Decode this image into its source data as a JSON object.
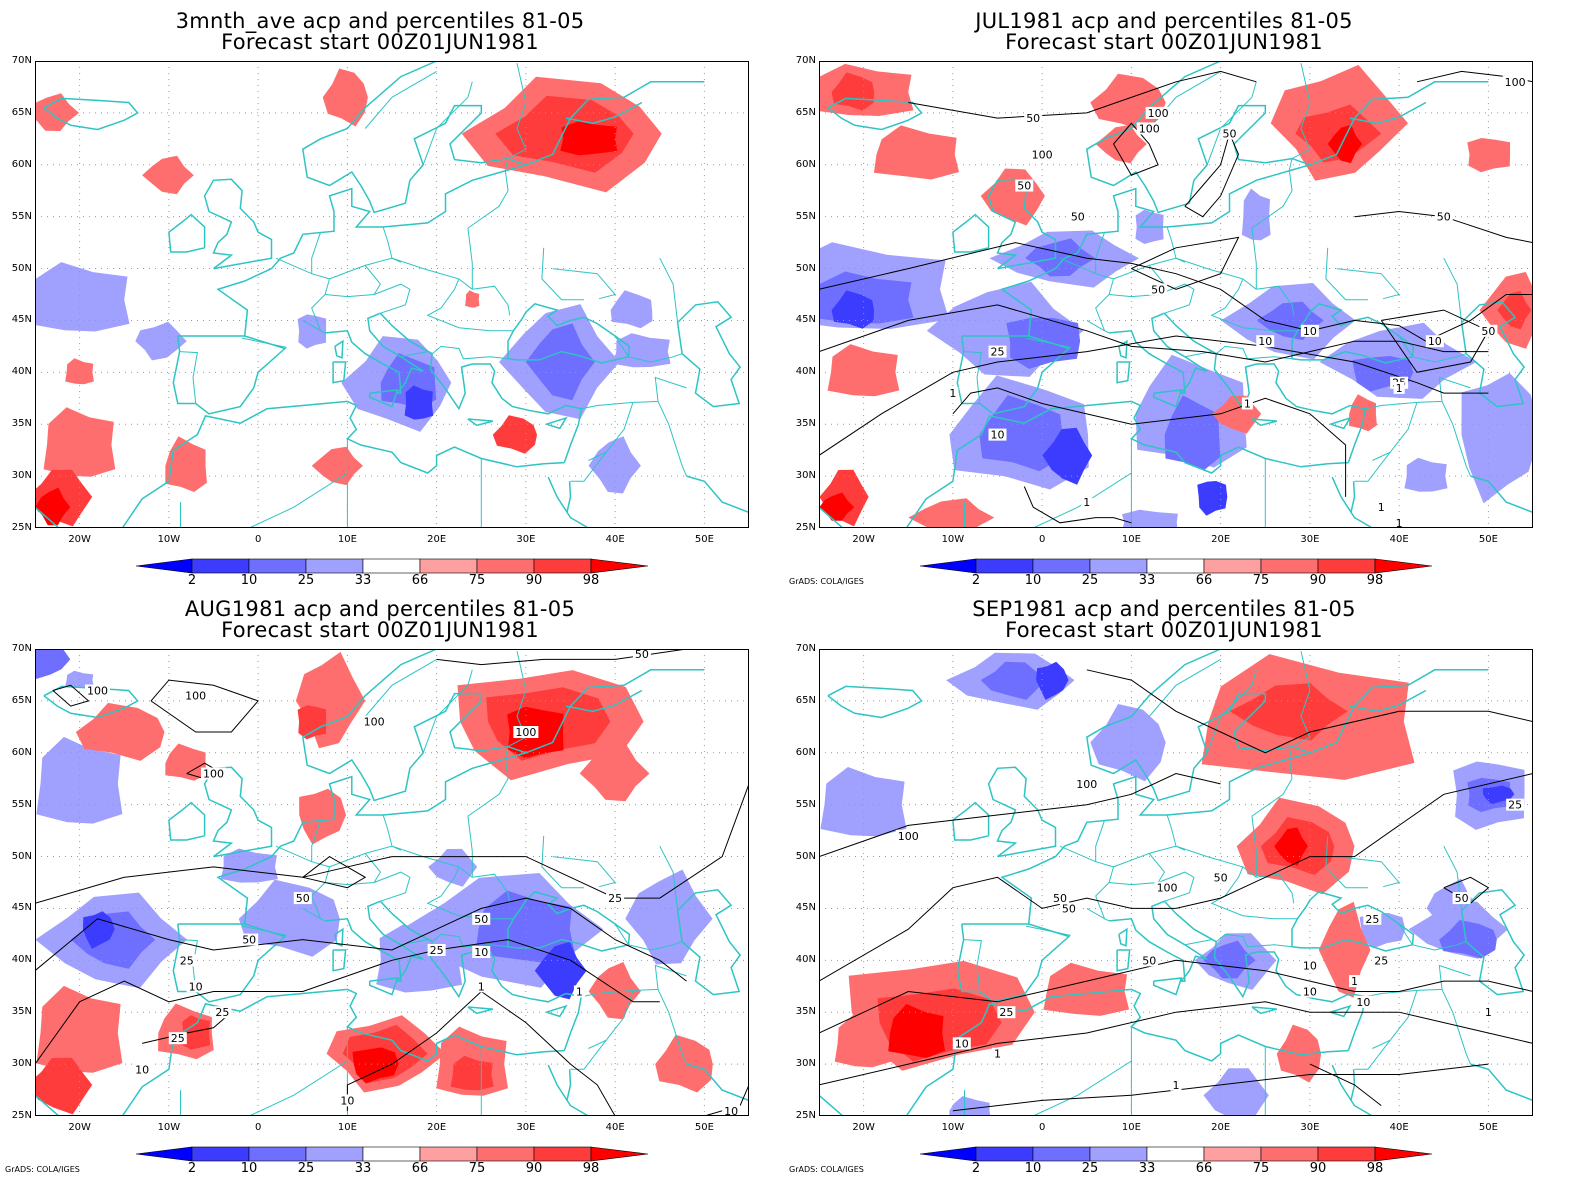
{
  "panels": [
    {
      "title_line1": "3mnth_ave acp and percentiles 81-05",
      "title_line2": "Forecast start 00Z01JUN1981",
      "credit": "",
      "variant": 0,
      "contour_labels": []
    },
    {
      "title_line1": "JUL1981 acp and percentiles 81-05",
      "title_line2": "Forecast start 00Z01JUN1981",
      "credit": "GrADS: COLA/IGES",
      "variant": 1,
      "contour_labels": [
        "50",
        "100",
        "100",
        "50",
        "100",
        "50",
        "50",
        "50",
        "100",
        "50",
        "10",
        "10",
        "25",
        "10",
        "50",
        "1",
        "25",
        "1",
        "1",
        "10",
        "1",
        "1",
        "1"
      ]
    },
    {
      "title_line1": "AUG1981 acp and percentiles 81-05",
      "title_line2": "Forecast start 00Z01JUN1981",
      "credit": "GrADS: COLA/IGES",
      "variant": 2,
      "contour_labels": [
        "50",
        "100",
        "100",
        "100",
        "100",
        "100",
        "25",
        "50",
        "50",
        "50",
        "25",
        "10",
        "25",
        "10",
        "1",
        "1",
        "25",
        "25",
        "10",
        "10",
        "10"
      ]
    },
    {
      "title_line1": "SEP1981 acp and percentiles 81-05",
      "title_line2": "Forecast start 00Z01JUN1981",
      "credit": "GrADS: COLA/IGES",
      "variant": 3,
      "contour_labels": [
        "100",
        "50",
        "100",
        "50",
        "100",
        "50",
        "25",
        "25",
        "50",
        "50",
        "25",
        "10",
        "10",
        "1",
        "25",
        "10",
        "10",
        "1",
        "1",
        "1"
      ]
    }
  ],
  "lat_labels": [
    "70N",
    "65N",
    "60N",
    "55N",
    "50N",
    "45N",
    "40N",
    "35N",
    "30N",
    "25N"
  ],
  "lon_labels": [
    "20W",
    "10W",
    "0",
    "10E",
    "20E",
    "30E",
    "40E",
    "50E"
  ],
  "colorbar": {
    "labels": [
      "2",
      "10",
      "25",
      "33",
      "66",
      "75",
      "90",
      "98"
    ],
    "colors": [
      "#0000ff",
      "#3c3cff",
      "#6e6eff",
      "#a0a0ff",
      "#ffffff",
      "#ffa0a0",
      "#ff6e6e",
      "#ff3c3c",
      "#ff0000"
    ]
  },
  "colors": {
    "coast": "#2ec4c4",
    "contour": "#000000",
    "grid": "#999999"
  }
}
